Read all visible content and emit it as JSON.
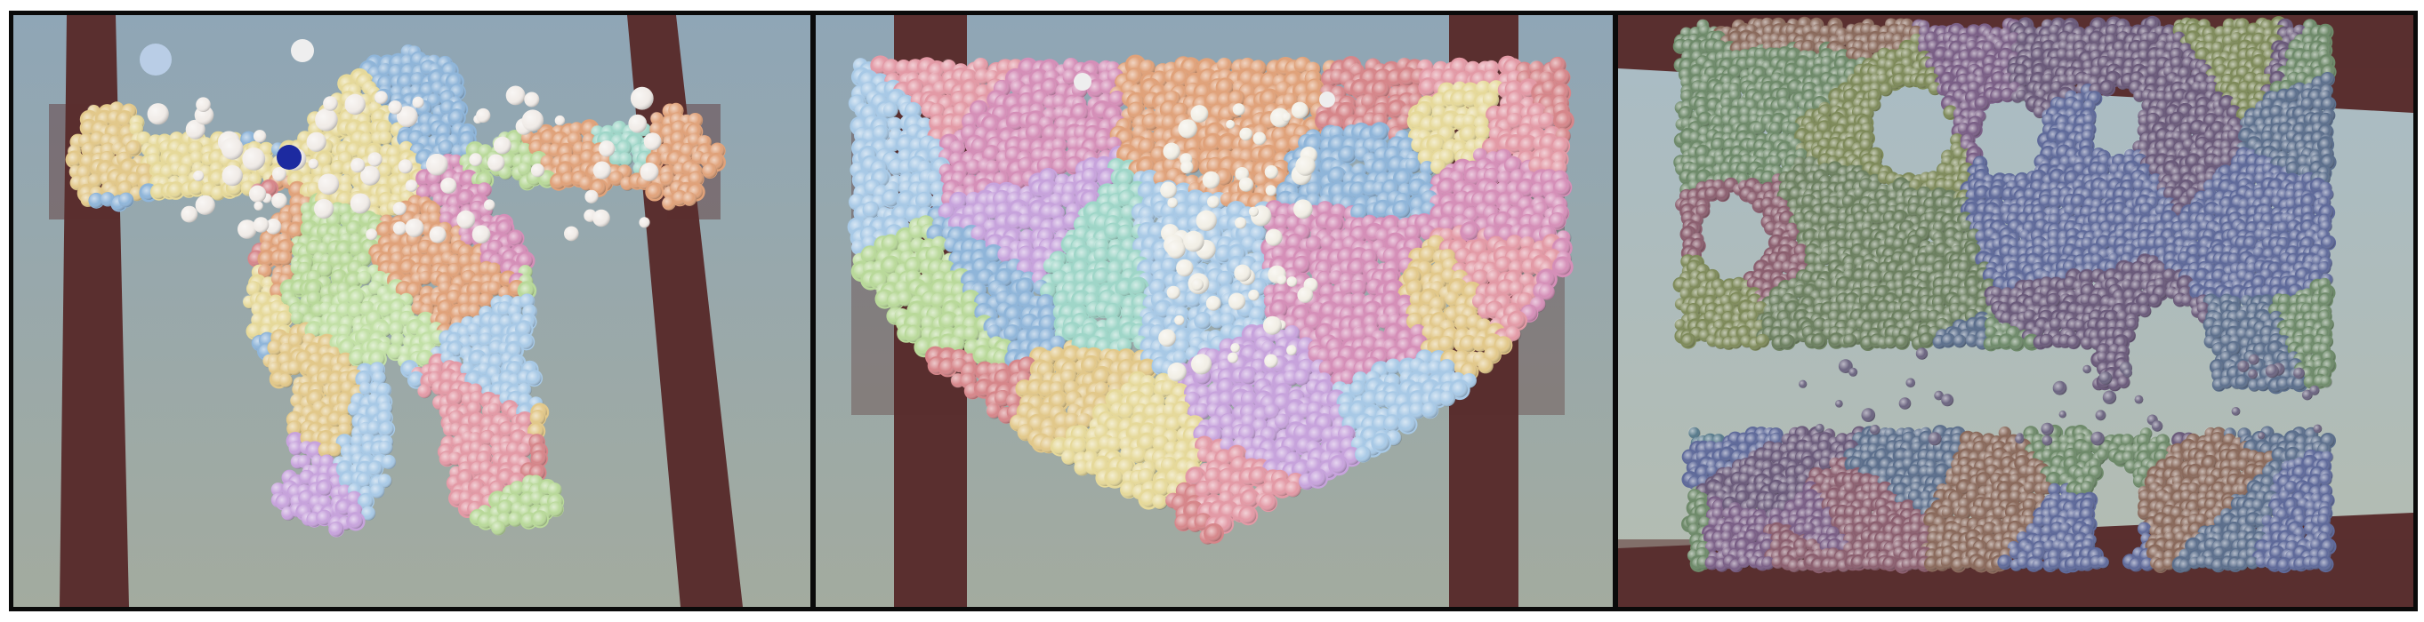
{
  "figure": {
    "panels": [
      {
        "id": "panel-armadillo",
        "subject": "armadillo-figure",
        "background_top": "#8fa6b6",
        "background_bottom": "#a3ab9f"
      },
      {
        "id": "panel-heart",
        "subject": "heart-shape",
        "background_top": "#8fa6b6",
        "background_bottom": "#a3ab9f"
      },
      {
        "id": "panel-sheet",
        "subject": "torn-sheet",
        "background_top": "#a9bcc6",
        "background_bottom": "#b4bcb0"
      }
    ],
    "colors": {
      "clamp": "#5a2f2f",
      "border": "#0a0a0a",
      "palette_pastel": [
        "#e39aa6",
        "#9fd6c8",
        "#c7a3dc",
        "#e2c88a",
        "#a8c9e6",
        "#b9d99a",
        "#e0a27a",
        "#d58fb8",
        "#8fb5d9",
        "#e6d99a",
        "#c2e0a6",
        "#d6868a"
      ],
      "palette_muted": [
        "#5c6f8c",
        "#6e8a6a",
        "#7a5f86",
        "#8a6a5c",
        "#56798a",
        "#6c8060",
        "#8b5f6f",
        "#5f6a9a",
        "#7e8a5a",
        "#6a5a7a"
      ]
    }
  }
}
